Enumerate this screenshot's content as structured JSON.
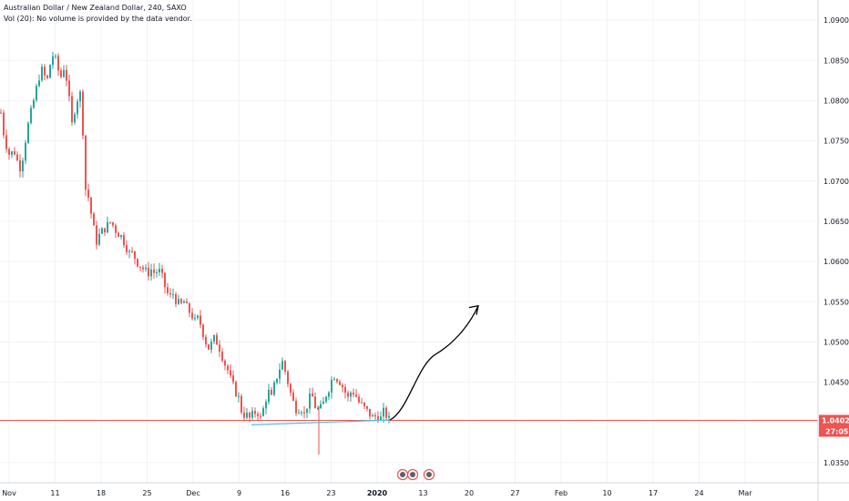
{
  "header": {
    "title": "Australian Dollar / New Zealand Dollar, 240, SAXO",
    "volume_note": "Vol (20): No volume is provided by the data vendor."
  },
  "colors": {
    "up": "#26a69a",
    "down": "#ef5350",
    "grid": "#f0f3fa",
    "price_line": "#ef5350",
    "support_line": "#4fc3d8",
    "annotation": "#000000"
  },
  "chart_data": {
    "type": "candlestick",
    "ylim": [
      1.0325,
      1.0925
    ],
    "y_ticks": [
      "1.09000",
      "1.08500",
      "1.08000",
      "1.07500",
      "1.07000",
      "1.06500",
      "1.06000",
      "1.05500",
      "1.05000",
      "1.04500",
      "1.04000",
      "1.03500"
    ],
    "x_ticks": [
      {
        "label": "Nov",
        "bold": false
      },
      {
        "label": "11",
        "bold": false
      },
      {
        "label": "18",
        "bold": false
      },
      {
        "label": "25",
        "bold": false
      },
      {
        "label": "Dec",
        "bold": false
      },
      {
        "label": "9",
        "bold": false
      },
      {
        "label": "16",
        "bold": false
      },
      {
        "label": "23",
        "bold": false
      },
      {
        "label": "2020",
        "bold": true
      },
      {
        "label": "13",
        "bold": false
      },
      {
        "label": "20",
        "bold": false
      },
      {
        "label": "27",
        "bold": false
      },
      {
        "label": "Feb",
        "bold": false
      },
      {
        "label": "10",
        "bold": false
      },
      {
        "label": "17",
        "bold": false
      },
      {
        "label": "24",
        "bold": false
      },
      {
        "label": "Mar",
        "bold": false
      }
    ],
    "last_price": "1.04026",
    "countdown": "27:05",
    "close_path": [
      [
        0,
        1.0785
      ],
      [
        3,
        1.076
      ],
      [
        6,
        1.0745
      ],
      [
        10,
        1.073
      ],
      [
        14,
        1.074
      ],
      [
        18,
        1.0725
      ],
      [
        22,
        1.0715
      ],
      [
        26,
        1.0745
      ],
      [
        30,
        1.077
      ],
      [
        34,
        1.079
      ],
      [
        38,
        1.081
      ],
      [
        42,
        1.083
      ],
      [
        46,
        1.084
      ],
      [
        50,
        1.082
      ],
      [
        54,
        1.0845
      ],
      [
        58,
        1.086
      ],
      [
        62,
        1.084
      ],
      [
        66,
        1.083
      ],
      [
        70,
        1.0845
      ],
      [
        74,
        1.081
      ],
      [
        78,
        1.077
      ],
      [
        82,
        1.0795
      ],
      [
        86,
        1.081
      ],
      [
        89,
        1.0805
      ],
      [
        91,
        1.072
      ],
      [
        93,
        1.069
      ],
      [
        96,
        1.068
      ],
      [
        99,
        1.066
      ],
      [
        102,
        1.064
      ],
      [
        105,
        1.0625
      ],
      [
        109,
        1.0635
      ],
      [
        113,
        1.064
      ],
      [
        117,
        1.0645
      ],
      [
        121,
        1.065
      ],
      [
        125,
        1.064
      ],
      [
        129,
        1.0635
      ],
      [
        133,
        1.063
      ],
      [
        137,
        1.062
      ],
      [
        141,
        1.061
      ],
      [
        145,
        1.061
      ],
      [
        149,
        1.06
      ],
      [
        153,
        1.0595
      ],
      [
        157,
        1.059
      ],
      [
        161,
        1.0585
      ],
      [
        165,
        1.059
      ],
      [
        169,
        1.0585
      ],
      [
        173,
        1.059
      ],
      [
        177,
        1.058
      ],
      [
        181,
        1.0565
      ],
      [
        185,
        1.0555
      ],
      [
        189,
        1.056
      ],
      [
        193,
        1.055
      ],
      [
        197,
        1.0545
      ],
      [
        201,
        1.055
      ],
      [
        205,
        1.054
      ],
      [
        209,
        1.0535
      ],
      [
        213,
        1.0525
      ],
      [
        217,
        1.053
      ],
      [
        221,
        1.0515
      ],
      [
        225,
        1.05
      ],
      [
        229,
        1.049
      ],
      [
        233,
        1.0505
      ],
      [
        237,
        1.05
      ],
      [
        241,
        1.049
      ],
      [
        245,
        1.0475
      ],
      [
        249,
        1.0465
      ],
      [
        253,
        1.045
      ],
      [
        257,
        1.044
      ],
      [
        261,
        1.043
      ],
      [
        265,
        1.041
      ],
      [
        269,
        1.041
      ],
      [
        273,
        1.0405
      ],
      [
        277,
        1.041
      ],
      [
        281,
        1.0415
      ],
      [
        285,
        1.0405
      ],
      [
        289,
        1.042
      ],
      [
        293,
        1.044
      ],
      [
        297,
        1.043
      ],
      [
        301,
        1.045
      ],
      [
        305,
        1.0465
      ],
      [
        309,
        1.0475
      ],
      [
        313,
        1.046
      ],
      [
        317,
        1.044
      ],
      [
        321,
        1.0425
      ],
      [
        325,
        1.0415
      ],
      [
        329,
        1.042
      ],
      [
        333,
        1.041
      ],
      [
        337,
        1.0425
      ],
      [
        341,
        1.0435
      ],
      [
        345,
        1.042
      ],
      [
        349,
        1.0415
      ],
      [
        353,
        1.042
      ],
      [
        357,
        1.0435
      ],
      [
        361,
        1.0445
      ],
      [
        365,
        1.046
      ],
      [
        369,
        1.0455
      ],
      [
        373,
        1.045
      ],
      [
        377,
        1.044
      ],
      [
        381,
        1.043
      ],
      [
        385,
        1.044
      ],
      [
        389,
        1.0435
      ],
      [
        393,
        1.0425
      ],
      [
        397,
        1.042
      ],
      [
        401,
        1.0415
      ],
      [
        405,
        1.041
      ],
      [
        409,
        1.0405
      ],
      [
        413,
        1.041
      ],
      [
        417,
        1.0405
      ],
      [
        421,
        1.0415
      ],
      [
        425,
        1.0403
      ]
    ],
    "support_line": {
      "x0": 276,
      "y0": 1.0397,
      "x1": 427,
      "y1": 1.0403
    },
    "drawn_arrow": {
      "x0": 428,
      "y0": 1.0403,
      "tipX": 525,
      "tipY": 1.0545
    }
  }
}
